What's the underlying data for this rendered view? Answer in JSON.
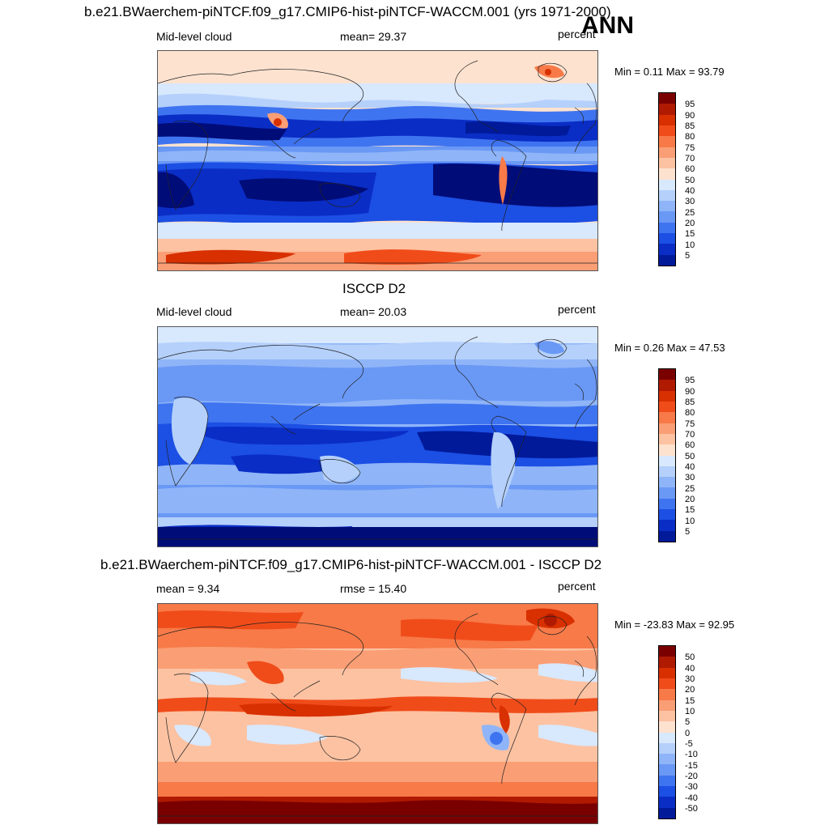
{
  "season": "ANN",
  "panels": [
    {
      "id": "model",
      "title": "b.e21.BWaerchem-piNTCF.f09_g17.CMIP6-hist-piNTCF-WACCM.001 (yrs 1971-2000)",
      "left_label": "Mid-level cloud",
      "center_label": "mean=  29.37",
      "units": "percent",
      "minmax": "Min =   0.11 Max =  93.79",
      "colorbar": {
        "colors": [
          "#7a0000",
          "#b01a00",
          "#d83000",
          "#f04c1a",
          "#f77a48",
          "#fa9e75",
          "#fcc2a2",
          "#fde2cf",
          "#ffffff",
          "#d8e8fd",
          "#b4d0fb",
          "#8fb5f8",
          "#6a98f5",
          "#3f74f0",
          "#1c4fe3",
          "#0a2dc5",
          "#001a9a",
          "#000c78"
        ],
        "labels": [
          "95",
          "90",
          "85",
          "80",
          "75",
          "70",
          "60",
          "50",
          "40",
          "30",
          "25",
          "20",
          "15",
          "10",
          "5"
        ]
      }
    },
    {
      "id": "obs",
      "title": "ISCCP D2",
      "left_label": "Mid-level cloud",
      "center_label": "mean=  20.03",
      "units": "percent",
      "minmax": "Min =   0.26 Max =  47.53",
      "colorbar": {
        "colors": [
          "#7a0000",
          "#b01a00",
          "#d83000",
          "#f04c1a",
          "#f77a48",
          "#fa9e75",
          "#fcc2a2",
          "#fde2cf",
          "#ffffff",
          "#d8e8fd",
          "#b4d0fb",
          "#8fb5f8",
          "#6a98f5",
          "#3f74f0",
          "#1c4fe3",
          "#0a2dc5",
          "#001a9a",
          "#000c78"
        ],
        "labels": [
          "95",
          "90",
          "85",
          "80",
          "75",
          "70",
          "60",
          "50",
          "40",
          "30",
          "25",
          "20",
          "15",
          "10",
          "5"
        ]
      }
    },
    {
      "id": "diff",
      "title": "b.e21.BWaerchem-piNTCF.f09_g17.CMIP6-hist-piNTCF-WACCM.001 - ISCCP D2",
      "left_label": "mean =   9.34",
      "center_label": "rmse =  15.40",
      "units": "percent",
      "minmax": "Min = -23.83 Max =  92.95",
      "colorbar": {
        "colors": [
          "#7a0000",
          "#b01a00",
          "#d83000",
          "#f04c1a",
          "#f77a48",
          "#fa9e75",
          "#fcc2a2",
          "#fde2cf",
          "#ffffff",
          "#d8e8fd",
          "#b4d0fb",
          "#8fb5f8",
          "#6a98f5",
          "#3f74f0",
          "#1c4fe3",
          "#0a2dc5",
          "#001a9a",
          "#000c78"
        ],
        "labels": [
          "50",
          "40",
          "30",
          "20",
          "15",
          "10",
          "5",
          "0",
          "-5",
          "-10",
          "-15",
          "-20",
          "-30",
          "-40",
          "-50"
        ]
      }
    }
  ]
}
